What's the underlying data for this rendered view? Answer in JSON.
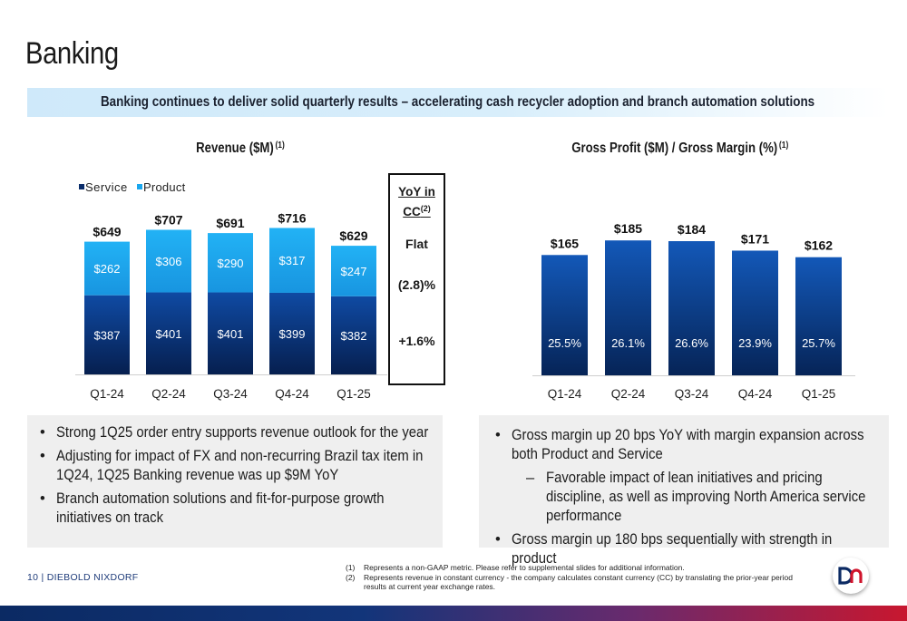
{
  "page": {
    "title": "Banking",
    "banner": "Banking continues to deliver solid quarterly results – accelerating cash recycler adoption and branch automation solutions",
    "page_footer": "10 | DIEBOLD NIXDORF"
  },
  "yoy": {
    "heading_line1": "YoY in",
    "heading_line2": "CC",
    "heading_sup": "(2)",
    "values": [
      "Flat",
      "(2.8)%",
      "+1.6%"
    ]
  },
  "left_bullets": [
    "Strong 1Q25 order entry supports revenue outlook for the year",
    "Adjusting for impact of FX and non-recurring Brazil tax item in 1Q24, 1Q25 Banking revenue was up $9M YoY",
    "Branch automation solutions and fit-for-purpose growth initiatives on track"
  ],
  "right_bullets": [
    {
      "text": "Gross margin up 20 bps YoY with margin expansion across both Product and Service",
      "level": 1
    },
    {
      "text": "Favorable impact of lean initiatives and pricing discipline, as well as improving North America service performance",
      "level": 2
    },
    {
      "text": "Gross margin up 180 bps sequentially with strength in product",
      "level": 1
    }
  ],
  "bullet_glyphs": {
    "level1": "•",
    "level2": "–"
  },
  "footnotes": [
    {
      "num": "(1)",
      "text": "Represents a non-GAAP metric.  Please refer to supplemental slides for additional information."
    },
    {
      "num": "(2)",
      "text": "Represents revenue in constant currency - the company calculates constant currency (CC) by translating the prior-year period results at current year exchange rates."
    }
  ],
  "logo_text": "DN",
  "colors": {
    "service": "#0a2d6b",
    "product": "#1aa7ee",
    "gross_profit": "#0b3d8f",
    "banner": "#d3ebfa",
    "panel": "#efefef"
  },
  "chart_data": [
    {
      "type": "bar",
      "stacked": true,
      "title": "Revenue ($M)",
      "title_sup": "(1)",
      "categories": [
        "Q1-24",
        "Q2-24",
        "Q3-24",
        "Q4-24",
        "Q1-25"
      ],
      "series": [
        {
          "name": "Service",
          "values": [
            387,
            401,
            401,
            399,
            382
          ],
          "labels": [
            "$387",
            "$401",
            "$401",
            "$399",
            "$382"
          ]
        },
        {
          "name": "Product",
          "values": [
            262,
            306,
            290,
            317,
            247
          ],
          "labels": [
            "$262",
            "$306",
            "$290",
            "$317",
            "$247"
          ]
        }
      ],
      "totals": [
        649,
        707,
        691,
        716,
        629
      ],
      "total_labels": [
        "$649",
        "$707",
        "$691",
        "$716",
        "$629"
      ],
      "legend": "top-left",
      "ylim": [
        0,
        820
      ],
      "grid": false
    },
    {
      "type": "bar",
      "title": "Gross Profit ($M) / Gross Margin (%)",
      "title_sup": "(1)",
      "categories": [
        "Q1-24",
        "Q2-24",
        "Q3-24",
        "Q4-24",
        "Q1-25"
      ],
      "values": [
        165,
        185,
        184,
        171,
        162
      ],
      "value_labels": [
        "$165",
        "$185",
        "$184",
        "$171",
        "$162"
      ],
      "margins": [
        25.5,
        26.1,
        26.6,
        23.9,
        25.7
      ],
      "margin_labels": [
        "25.5%",
        "26.1%",
        "26.6%",
        "23.9%",
        "25.7%"
      ],
      "ylim": [
        0,
        230
      ],
      "grid": false
    }
  ]
}
